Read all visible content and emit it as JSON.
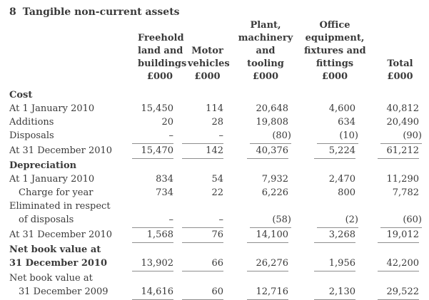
{
  "page": {
    "background_color": "#ffffff",
    "text_color": "#3a3a3a",
    "rule_color": "#8e8e8e"
  },
  "heading": {
    "number": "8",
    "title": "Tangible non-current assets"
  },
  "table": {
    "columns": [
      {
        "id": "freehold-land-and-buildings",
        "lines": [
          "Freehold",
          "land and",
          "buildings"
        ],
        "unit": "£000"
      },
      {
        "id": "motor-vehicles",
        "lines": [
          "Motor",
          "vehicles"
        ],
        "unit": "£000"
      },
      {
        "id": "plant-machinery-and-tooling",
        "lines": [
          "Plant,",
          "machinery",
          "and",
          "tooling"
        ],
        "unit": "£000"
      },
      {
        "id": "office-equipment-fixtures-and-fittings",
        "lines": [
          "Office",
          "equipment,",
          "fixtures and",
          "fittings"
        ],
        "unit": "£000"
      },
      {
        "id": "total",
        "lines": [
          "Total"
        ],
        "unit": "£000"
      }
    ],
    "rows": [
      {
        "label": "Cost",
        "bold": true,
        "values": [
          "",
          "",
          "",
          "",
          ""
        ]
      },
      {
        "label": "At 1 January 2010",
        "values": [
          "15,450",
          "114",
          "20,648",
          "4,600",
          "40,812"
        ]
      },
      {
        "label": "Additions",
        "values": [
          "20",
          "28",
          "19,808",
          "634",
          "20,490"
        ]
      },
      {
        "label": "Disposals",
        "underline": true,
        "values": [
          "–",
          "–",
          "(80)",
          "(10)",
          "(90)"
        ]
      },
      {
        "label": "At 31 December 2010",
        "underline": true,
        "values": [
          "15,470",
          "142",
          "40,376",
          "5,224",
          "61,212"
        ]
      },
      {
        "label": "Depreciation",
        "bold": true,
        "values": [
          "",
          "",
          "",
          "",
          ""
        ]
      },
      {
        "label": "At 1 January 2010",
        "values": [
          "834",
          "54",
          "7,932",
          "2,470",
          "11,290"
        ]
      },
      {
        "label": "Charge for year",
        "indent": true,
        "values": [
          "734",
          "22",
          "6,226",
          "800",
          "7,782"
        ]
      },
      {
        "label": "Eliminated in respect",
        "values": [
          "",
          "",
          "",
          "",
          ""
        ]
      },
      {
        "label": "of disposals",
        "indent": true,
        "underline": true,
        "values": [
          "–",
          "–",
          "(58)",
          "(2)",
          "(60)"
        ]
      },
      {
        "label": "At 31 December 2010",
        "underline": true,
        "values": [
          "1,568",
          "76",
          "14,100",
          "3,268",
          "19,012"
        ]
      },
      {
        "label": "Net book value at",
        "bold": true,
        "values": [
          "",
          "",
          "",
          "",
          ""
        ]
      },
      {
        "label": "31 December 2010",
        "bold": true,
        "underline": true,
        "values": [
          "13,902",
          "66",
          "26,276",
          "1,956",
          "42,200"
        ]
      },
      {
        "label": "Net book value at",
        "values": [
          "",
          "",
          "",
          "",
          ""
        ]
      },
      {
        "label": "31 December 2009",
        "indent": true,
        "underline": true,
        "values": [
          "14,616",
          "60",
          "12,716",
          "2,130",
          "29,522"
        ]
      }
    ]
  }
}
